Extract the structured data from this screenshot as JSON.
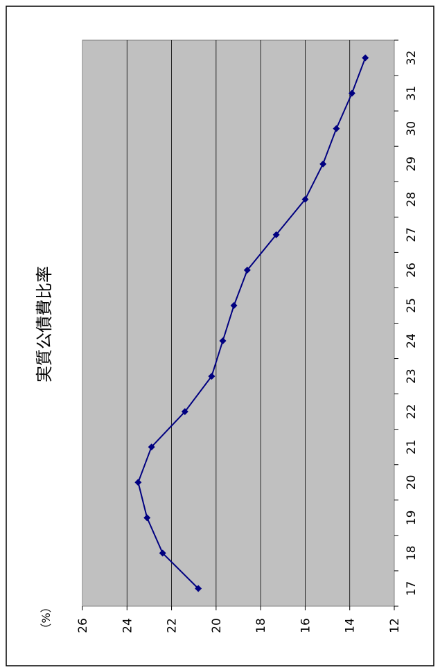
{
  "chart_data": {
    "type": "line",
    "title": "実質公債費比率",
    "unit_label": "（%）",
    "categories": [
      "17",
      "18",
      "19",
      "20",
      "21",
      "22",
      "23",
      "24",
      "25",
      "26",
      "27",
      "28",
      "29",
      "30",
      "31",
      "32"
    ],
    "values": [
      20.8,
      22.4,
      23.1,
      23.5,
      22.9,
      21.4,
      20.2,
      19.7,
      19.2,
      18.6,
      17.3,
      16.0,
      15.2,
      14.6,
      13.9,
      13.3
    ],
    "yticks": [
      "26",
      "24",
      "22",
      "20",
      "18",
      "16",
      "14",
      "12"
    ],
    "ylim": [
      12,
      26
    ],
    "grid": true,
    "colors": {
      "line": "#000080",
      "plot_bg": "#c0c0c0"
    }
  }
}
